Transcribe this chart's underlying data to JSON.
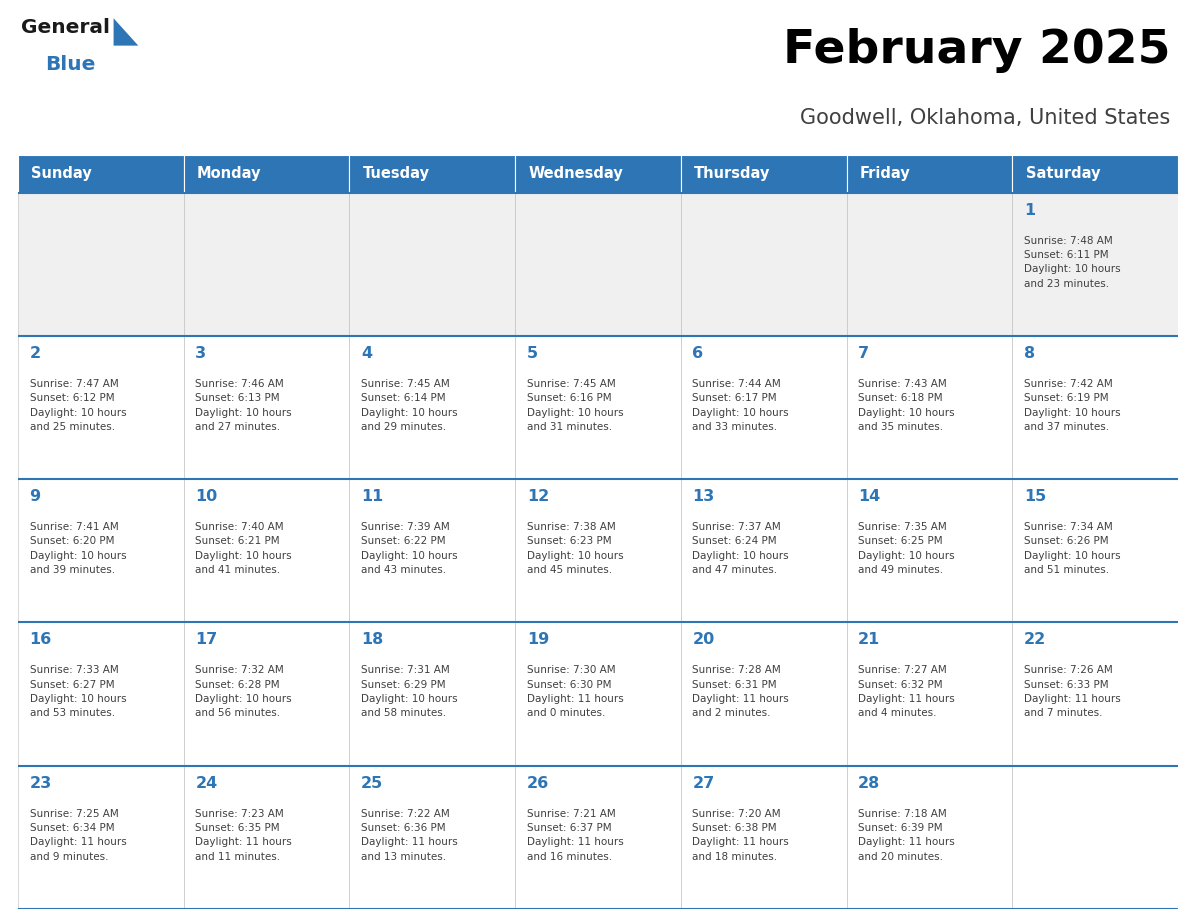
{
  "title": "February 2025",
  "subtitle": "Goodwell, Oklahoma, United States",
  "header_bg": "#2e75b6",
  "header_text_color": "#ffffff",
  "cell_bg_light": "#f0f0f0",
  "cell_bg_white": "#ffffff",
  "day_names": [
    "Sunday",
    "Monday",
    "Tuesday",
    "Wednesday",
    "Thursday",
    "Friday",
    "Saturday"
  ],
  "title_color": "#000000",
  "subtitle_color": "#404040",
  "line_color": "#2e75b6",
  "day_num_color": "#2e75b6",
  "cell_text_color": "#404040",
  "calendar": [
    [
      null,
      null,
      null,
      null,
      null,
      null,
      {
        "day": 1,
        "sunrise": "7:48 AM",
        "sunset": "6:11 PM",
        "daylight": "10 hours\nand 23 minutes."
      }
    ],
    [
      {
        "day": 2,
        "sunrise": "7:47 AM",
        "sunset": "6:12 PM",
        "daylight": "10 hours\nand 25 minutes."
      },
      {
        "day": 3,
        "sunrise": "7:46 AM",
        "sunset": "6:13 PM",
        "daylight": "10 hours\nand 27 minutes."
      },
      {
        "day": 4,
        "sunrise": "7:45 AM",
        "sunset": "6:14 PM",
        "daylight": "10 hours\nand 29 minutes."
      },
      {
        "day": 5,
        "sunrise": "7:45 AM",
        "sunset": "6:16 PM",
        "daylight": "10 hours\nand 31 minutes."
      },
      {
        "day": 6,
        "sunrise": "7:44 AM",
        "sunset": "6:17 PM",
        "daylight": "10 hours\nand 33 minutes."
      },
      {
        "day": 7,
        "sunrise": "7:43 AM",
        "sunset": "6:18 PM",
        "daylight": "10 hours\nand 35 minutes."
      },
      {
        "day": 8,
        "sunrise": "7:42 AM",
        "sunset": "6:19 PM",
        "daylight": "10 hours\nand 37 minutes."
      }
    ],
    [
      {
        "day": 9,
        "sunrise": "7:41 AM",
        "sunset": "6:20 PM",
        "daylight": "10 hours\nand 39 minutes."
      },
      {
        "day": 10,
        "sunrise": "7:40 AM",
        "sunset": "6:21 PM",
        "daylight": "10 hours\nand 41 minutes."
      },
      {
        "day": 11,
        "sunrise": "7:39 AM",
        "sunset": "6:22 PM",
        "daylight": "10 hours\nand 43 minutes."
      },
      {
        "day": 12,
        "sunrise": "7:38 AM",
        "sunset": "6:23 PM",
        "daylight": "10 hours\nand 45 minutes."
      },
      {
        "day": 13,
        "sunrise": "7:37 AM",
        "sunset": "6:24 PM",
        "daylight": "10 hours\nand 47 minutes."
      },
      {
        "day": 14,
        "sunrise": "7:35 AM",
        "sunset": "6:25 PM",
        "daylight": "10 hours\nand 49 minutes."
      },
      {
        "day": 15,
        "sunrise": "7:34 AM",
        "sunset": "6:26 PM",
        "daylight": "10 hours\nand 51 minutes."
      }
    ],
    [
      {
        "day": 16,
        "sunrise": "7:33 AM",
        "sunset": "6:27 PM",
        "daylight": "10 hours\nand 53 minutes."
      },
      {
        "day": 17,
        "sunrise": "7:32 AM",
        "sunset": "6:28 PM",
        "daylight": "10 hours\nand 56 minutes."
      },
      {
        "day": 18,
        "sunrise": "7:31 AM",
        "sunset": "6:29 PM",
        "daylight": "10 hours\nand 58 minutes."
      },
      {
        "day": 19,
        "sunrise": "7:30 AM",
        "sunset": "6:30 PM",
        "daylight": "11 hours\nand 0 minutes."
      },
      {
        "day": 20,
        "sunrise": "7:28 AM",
        "sunset": "6:31 PM",
        "daylight": "11 hours\nand 2 minutes."
      },
      {
        "day": 21,
        "sunrise": "7:27 AM",
        "sunset": "6:32 PM",
        "daylight": "11 hours\nand 4 minutes."
      },
      {
        "day": 22,
        "sunrise": "7:26 AM",
        "sunset": "6:33 PM",
        "daylight": "11 hours\nand 7 minutes."
      }
    ],
    [
      {
        "day": 23,
        "sunrise": "7:25 AM",
        "sunset": "6:34 PM",
        "daylight": "11 hours\nand 9 minutes."
      },
      {
        "day": 24,
        "sunrise": "7:23 AM",
        "sunset": "6:35 PM",
        "daylight": "11 hours\nand 11 minutes."
      },
      {
        "day": 25,
        "sunrise": "7:22 AM",
        "sunset": "6:36 PM",
        "daylight": "11 hours\nand 13 minutes."
      },
      {
        "day": 26,
        "sunrise": "7:21 AM",
        "sunset": "6:37 PM",
        "daylight": "11 hours\nand 16 minutes."
      },
      {
        "day": 27,
        "sunrise": "7:20 AM",
        "sunset": "6:38 PM",
        "daylight": "11 hours\nand 18 minutes."
      },
      {
        "day": 28,
        "sunrise": "7:18 AM",
        "sunset": "6:39 PM",
        "daylight": "11 hours\nand 20 minutes."
      },
      null
    ]
  ],
  "fig_width": 11.88,
  "fig_height": 9.18,
  "dpi": 100
}
